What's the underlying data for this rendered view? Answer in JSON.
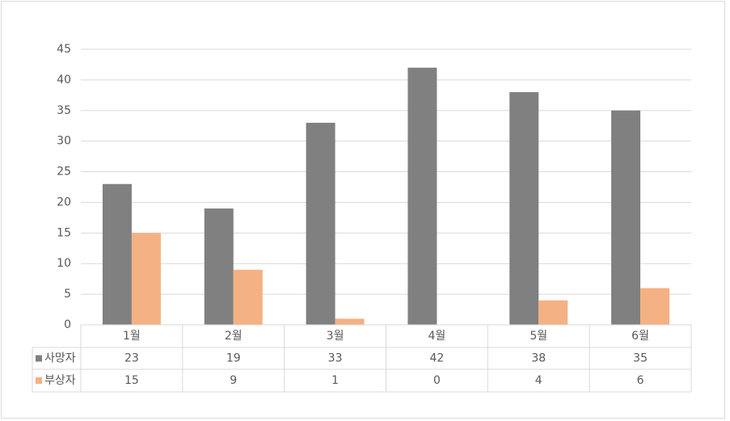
{
  "chart_data": {
    "type": "bar",
    "categories": [
      "1월",
      "2월",
      "3월",
      "4월",
      "5월",
      "6월"
    ],
    "series": [
      {
        "name": "사망자",
        "color": "#808080",
        "values": [
          23,
          19,
          33,
          42,
          38,
          35
        ]
      },
      {
        "name": "부상자",
        "color": "#f4b183",
        "values": [
          15,
          9,
          1,
          0,
          4,
          6
        ]
      }
    ],
    "ylim": [
      0,
      45
    ],
    "yticks": [
      0,
      5,
      10,
      15,
      20,
      25,
      30,
      35,
      40,
      45
    ],
    "grid": true
  }
}
